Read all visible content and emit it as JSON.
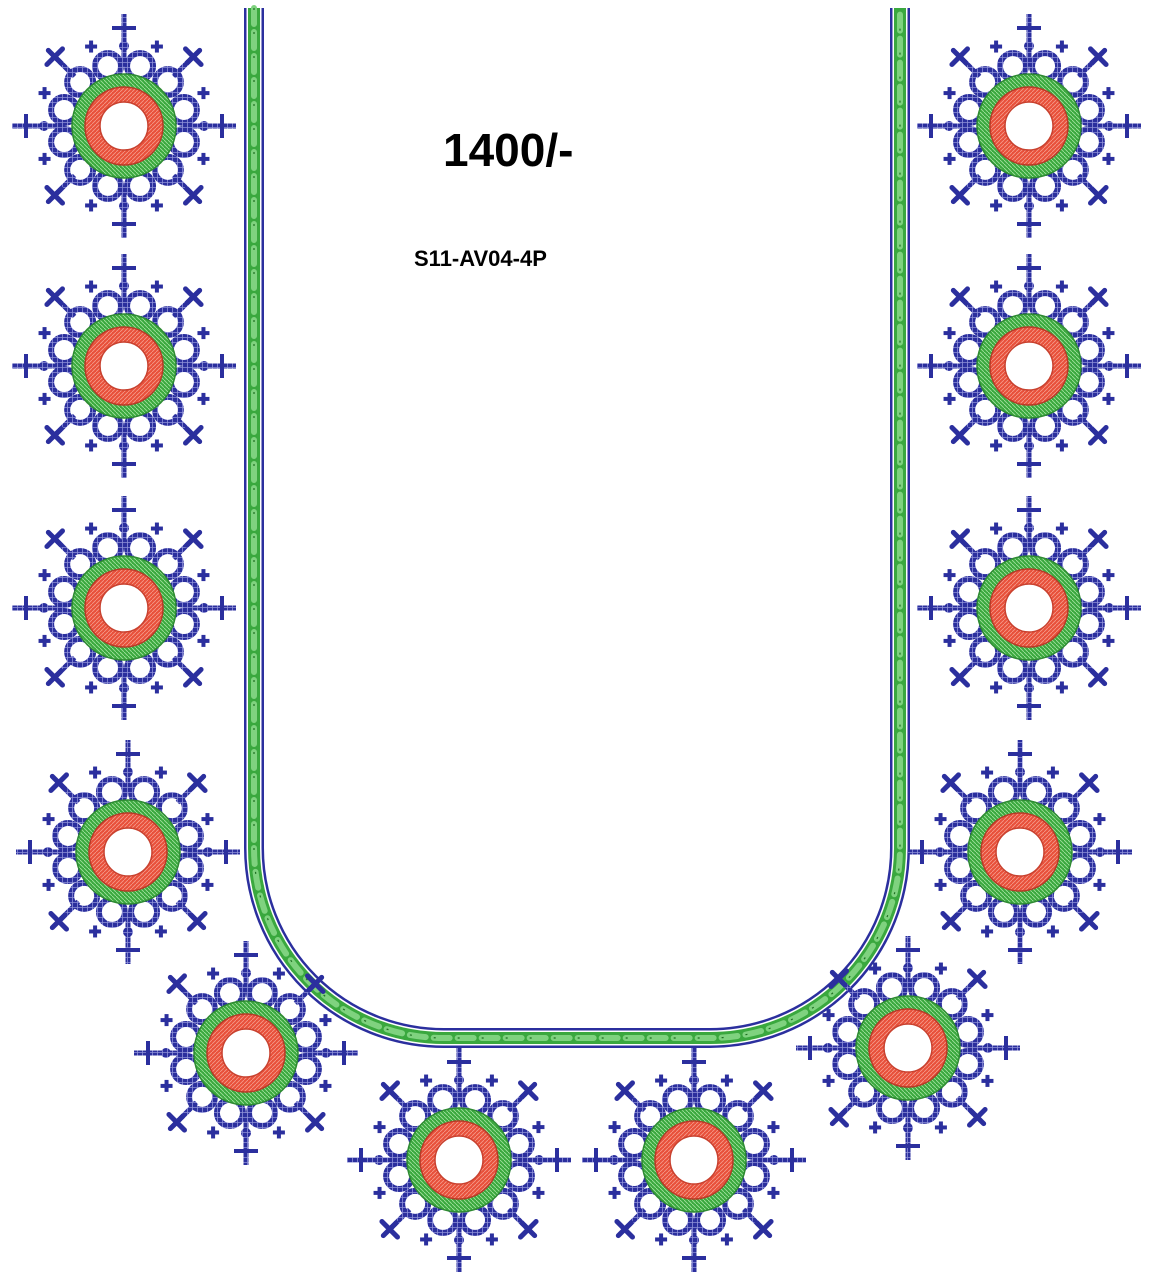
{
  "design": {
    "price": "1400/-",
    "code": "S11-AV04-4P"
  },
  "colors": {
    "background": "#ffffff",
    "thread_blue": "#2b2f9e",
    "thread_green": "#3aa83e",
    "thread_light_green": "#7fd27f",
    "thread_red": "#e8503a",
    "text": "#000000"
  },
  "motif": {
    "name": "mirror-work-flower",
    "count": 12,
    "layers": [
      "blue-lattice-petals",
      "green-ring",
      "red-ring",
      "white-mirror-center"
    ]
  },
  "neckline": {
    "shape": "u-neck",
    "border": [
      "blue-outline",
      "green-chain-stitch",
      "blue-outline"
    ]
  }
}
